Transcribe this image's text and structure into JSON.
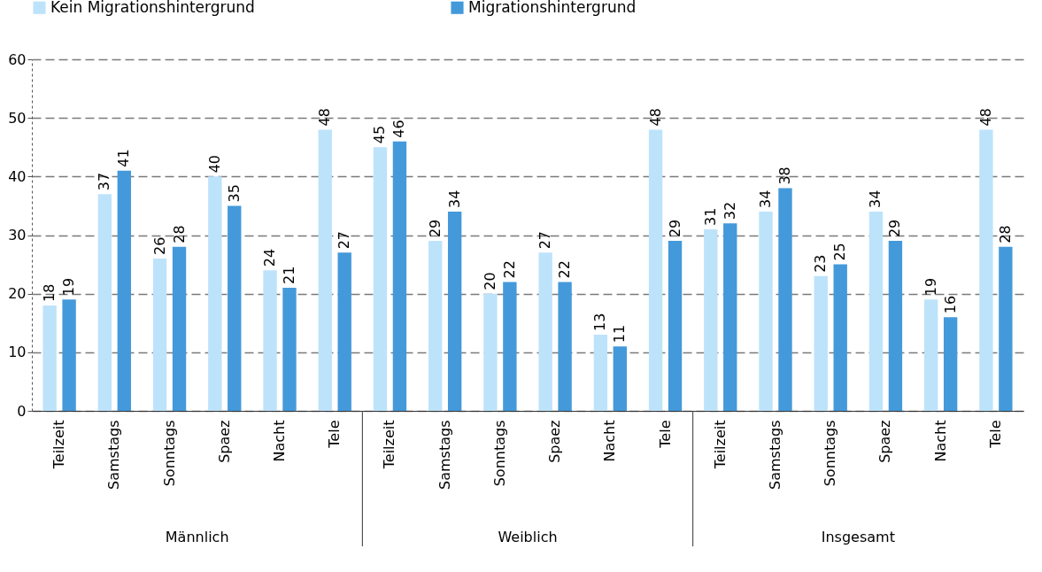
{
  "chart_data": {
    "type": "bar",
    "categories": [
      "Teilzeit",
      "Samstags",
      "Sonntags",
      "Spaez",
      "Nacht",
      "Tele",
      "Teilzeit",
      "Samstags",
      "Sonntags",
      "Spaez",
      "Nacht",
      "Tele",
      "Teilzeit",
      "Samstags",
      "Sonntags",
      "Spaez",
      "Nacht",
      "Tele"
    ],
    "series": [
      {
        "name": "Kein Migrationshintergrund",
        "color": "#bde3fb",
        "values": [
          18,
          37,
          26,
          40,
          24,
          48,
          45,
          29,
          20,
          27,
          13,
          48,
          31,
          34,
          23,
          34,
          19,
          48
        ]
      },
      {
        "name": "Migrationshintergrund",
        "color": "#4499da",
        "values": [
          19,
          41,
          28,
          35,
          21,
          27,
          46,
          34,
          22,
          22,
          11,
          29,
          32,
          38,
          25,
          29,
          16,
          28
        ]
      }
    ],
    "annotations": [
      "Männlich",
      "Weiblich",
      "Insgesamt"
    ],
    "ylim": [
      0,
      60
    ],
    "yticks": [
      0,
      10,
      20,
      30,
      40,
      50,
      60
    ],
    "grid": "y",
    "legend": "top",
    "data_labels": true
  }
}
